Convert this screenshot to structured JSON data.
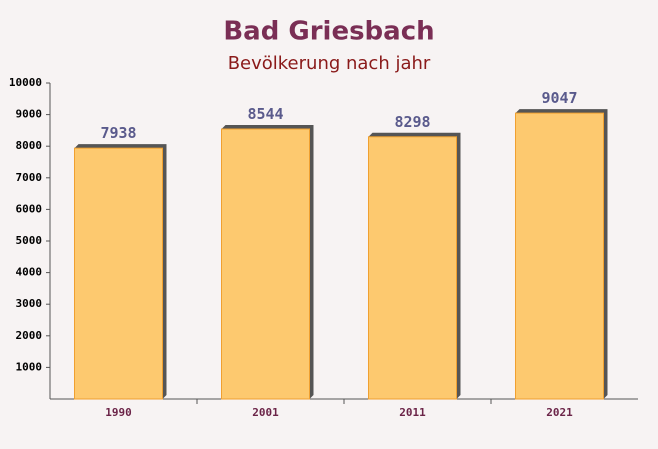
{
  "chart_data": {
    "type": "bar",
    "title": "Bad Griesbach",
    "subtitle": "Bevölkerung nach jahr",
    "categories": [
      "1990",
      "2001",
      "2011",
      "2021"
    ],
    "values": [
      7938,
      8544,
      8298,
      9047
    ],
    "color": "#fdc460",
    "ylim": [
      0,
      10000
    ],
    "yticks": [
      1000,
      2000,
      3000,
      4000,
      5000,
      6000,
      7000,
      8000,
      9000,
      10000
    ]
  }
}
